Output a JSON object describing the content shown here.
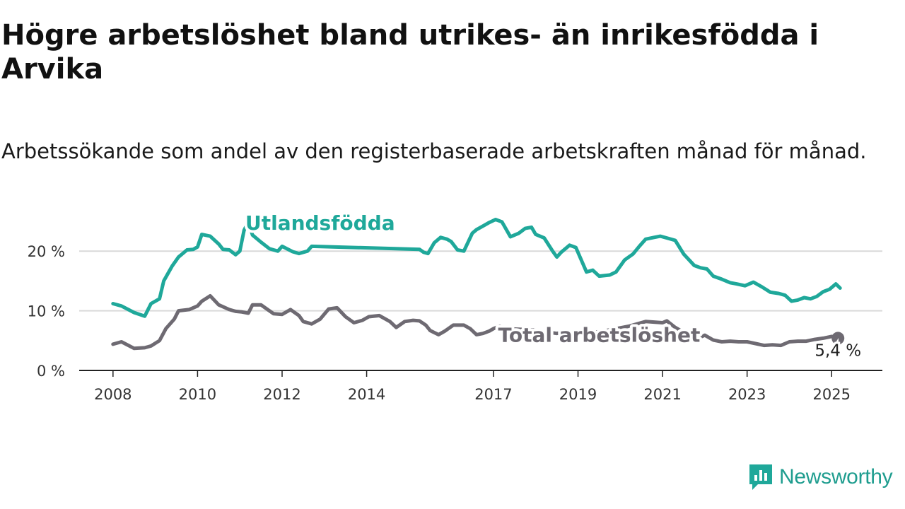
{
  "header": {
    "title": "Högre arbetslöshet bland utrikes- än inrikesfödda i Arvika",
    "subtitle": "Arbetssökande som andel av den registerbaserade arbetskraften månad för månad."
  },
  "branding": {
    "logo_text": "Newsworthy",
    "logo_icon": "bar-chart-chat-icon",
    "color": "#2a9d8f"
  },
  "chart_data": {
    "type": "line",
    "x_unit": "year",
    "xlim": [
      2007.2,
      2026.2
    ],
    "ylim": [
      0,
      25
    ],
    "yticks": [
      0,
      10,
      20
    ],
    "ytick_labels": [
      "0 %",
      "10 %",
      "20 %"
    ],
    "xticks": [
      2008,
      2010,
      2012,
      2014,
      2017,
      2019,
      2021,
      2023,
      2025
    ],
    "xtick_labels": [
      "2008",
      "2010",
      "2012",
      "2014",
      "2017",
      "2019",
      "2021",
      "2023",
      "2025"
    ],
    "grid": true,
    "series": [
      {
        "name": "Utlandsfödda",
        "color": "#1fa89a",
        "x": [
          2008.0,
          2008.2,
          2008.5,
          2008.75,
          2008.9,
          2009.1,
          2009.2,
          2009.4,
          2009.55,
          2009.75,
          2009.9,
          2010.0,
          2010.1,
          2010.3,
          2010.5,
          2010.6,
          2010.75,
          2010.9,
          2011.0,
          2011.1,
          2011.2,
          2011.3,
          2011.5,
          2011.7,
          2011.8,
          2011.9,
          2012.0,
          2012.25,
          2012.4,
          2012.6,
          2012.7,
          2015.25,
          2015.35,
          2015.45,
          2015.6,
          2015.75,
          2015.9,
          2016.0,
          2016.15,
          2016.3,
          2016.5,
          2016.6,
          2016.75,
          2016.9,
          2017.05,
          2017.2,
          2017.4,
          2017.6,
          2017.75,
          2017.9,
          2018.0,
          2018.2,
          2018.4,
          2018.5,
          2018.6,
          2018.8,
          2018.95,
          2019.2,
          2019.35,
          2019.5,
          2019.75,
          2019.9,
          2020.1,
          2020.3,
          2020.45,
          2020.6,
          2020.8,
          2020.95,
          2021.1,
          2021.3,
          2021.5,
          2021.75,
          2021.9,
          2022.05,
          2022.2,
          2022.4,
          2022.6,
          2022.75,
          2022.95,
          2023.15,
          2023.35,
          2023.55,
          2023.75,
          2023.9,
          2024.05,
          2024.2,
          2024.35,
          2024.5,
          2024.65,
          2024.8,
          2024.95,
          2025.1,
          2025.2
        ],
        "y": [
          11.2,
          10.8,
          9.7,
          9.1,
          11.2,
          12.0,
          15.0,
          17.5,
          19.0,
          20.2,
          20.3,
          20.7,
          22.8,
          22.5,
          21.2,
          20.3,
          20.2,
          19.4,
          20.0,
          23.5,
          24.9,
          22.7,
          21.5,
          20.4,
          20.2,
          20.0,
          20.8,
          19.9,
          19.6,
          20.0,
          20.8,
          20.3,
          19.8,
          19.6,
          21.4,
          22.3,
          22.0,
          21.6,
          20.2,
          20.0,
          23.0,
          23.6,
          24.2,
          24.8,
          25.3,
          24.9,
          22.4,
          23.0,
          23.8,
          24.0,
          22.8,
          22.2,
          20.0,
          19.0,
          19.8,
          21.0,
          20.6,
          16.5,
          16.8,
          15.8,
          16.0,
          16.5,
          18.5,
          19.5,
          20.8,
          22.0,
          22.3,
          22.5,
          22.2,
          21.8,
          19.5,
          17.6,
          17.2,
          17.0,
          15.8,
          15.3,
          14.7,
          14.5,
          14.2,
          14.8,
          14.0,
          13.1,
          12.9,
          12.6,
          11.6,
          11.8,
          12.2,
          12.0,
          12.4,
          13.2,
          13.6,
          14.5,
          13.8
        ]
      },
      {
        "name": "Total arbetslöshet",
        "color": "#6e6a72",
        "x": [
          2008.0,
          2008.2,
          2008.5,
          2008.75,
          2008.9,
          2009.1,
          2009.25,
          2009.45,
          2009.55,
          2009.8,
          2010.0,
          2010.1,
          2010.3,
          2010.5,
          2010.75,
          2010.9,
          2011.05,
          2011.2,
          2011.3,
          2011.5,
          2011.8,
          2012.0,
          2012.2,
          2012.4,
          2012.5,
          2012.7,
          2012.9,
          2013.1,
          2013.3,
          2013.5,
          2013.7,
          2013.9,
          2014.05,
          2014.3,
          2014.55,
          2014.7,
          2014.9,
          2015.1,
          2015.25,
          2015.4,
          2015.5,
          2015.7,
          2015.85,
          2016.05,
          2016.3,
          2016.45,
          2016.6,
          2016.75,
          2016.9,
          2017.0,
          2017.15,
          2017.3,
          2017.6,
          2017.9,
          2018.2,
          2018.5,
          2018.7,
          2019.0,
          2019.3,
          2019.6,
          2019.9,
          2020.2,
          2020.4,
          2020.6,
          2020.8,
          2021.0,
          2021.1,
          2021.3,
          2021.5,
          2021.7,
          2021.9,
          2022.0,
          2022.2,
          2022.4,
          2022.6,
          2022.8,
          2023.0,
          2023.2,
          2023.4,
          2023.6,
          2023.8,
          2024.0,
          2024.2,
          2024.4,
          2024.6,
          2024.8,
          2025.0,
          2025.15
        ],
        "y": [
          4.4,
          4.8,
          3.7,
          3.8,
          4.1,
          5.0,
          7.0,
          8.6,
          10.0,
          10.2,
          10.8,
          11.6,
          12.5,
          11.0,
          10.2,
          9.9,
          9.8,
          9.6,
          11.0,
          11.0,
          9.5,
          9.4,
          10.2,
          9.2,
          8.2,
          7.8,
          8.6,
          10.3,
          10.5,
          9.0,
          8.0,
          8.4,
          9.0,
          9.2,
          8.2,
          7.2,
          8.2,
          8.4,
          8.3,
          7.6,
          6.7,
          6.0,
          6.6,
          7.6,
          7.6,
          7.0,
          6.0,
          6.2,
          6.6,
          7.0,
          7.4,
          7.0,
          6.9,
          6.8,
          6.5,
          6.2,
          6.5,
          6.4,
          6.3,
          6.6,
          7.0,
          7.4,
          7.8,
          8.2,
          8.1,
          8.0,
          8.3,
          7.2,
          6.4,
          6.1,
          5.6,
          5.9,
          5.1,
          4.8,
          4.9,
          4.8,
          4.8,
          4.5,
          4.2,
          4.3,
          4.2,
          4.8,
          4.9,
          4.9,
          5.2,
          5.4,
          5.7,
          5.4
        ]
      }
    ],
    "annotations": [
      {
        "text": "Utlandsfödda",
        "series": 0,
        "x": 2012.9,
        "y": 23.6
      },
      {
        "text": "Total arbetslöshet",
        "series": 1,
        "x": 2019.5,
        "y": 4.8
      },
      {
        "text": "5,4 %",
        "series": 1,
        "x": 2025.15,
        "y": 2.4
      }
    ]
  }
}
